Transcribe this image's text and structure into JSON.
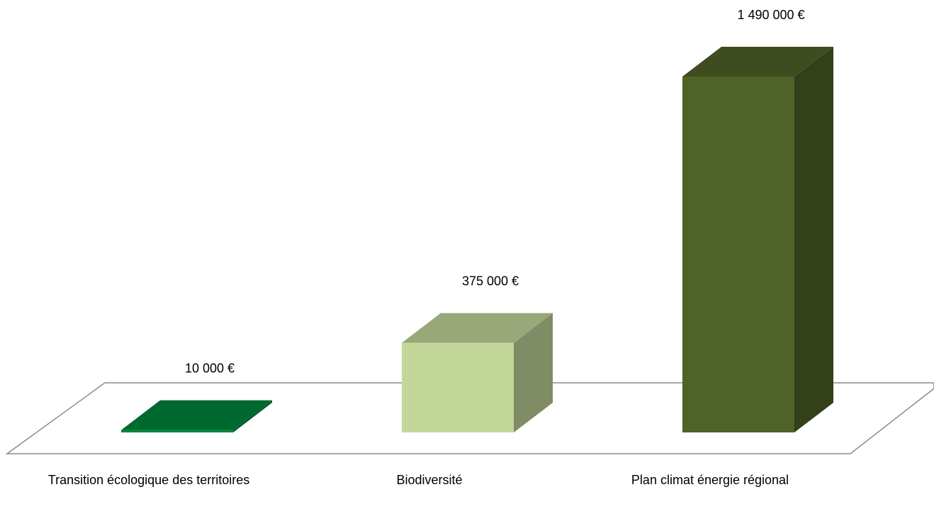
{
  "chart_data": {
    "type": "bar3d",
    "categories": [
      "Transition écologique des territoires",
      "Biodiversité",
      "Plan climat énergie régional"
    ],
    "values": [
      10000,
      375000,
      1490000
    ],
    "value_labels": [
      "10 000 €",
      "375 000 €",
      "1 490 000 €"
    ],
    "colors": [
      "#00873c",
      "#c4d79b",
      "#4f6228"
    ]
  }
}
